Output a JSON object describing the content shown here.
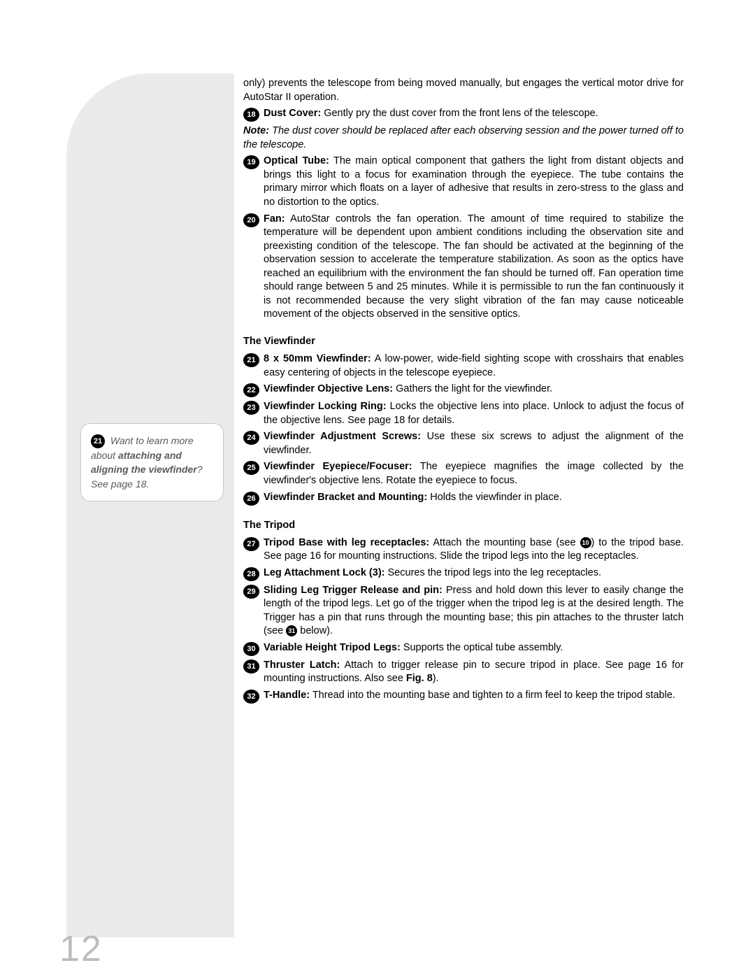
{
  "page_number": "12",
  "colors": {
    "sidebar_bg": "#ebebeb",
    "tip_border": "#c8c8c8",
    "tip_text": "#5a5a5a",
    "pagenum": "#bdbdbd",
    "circle": "#000000",
    "body_text": "#000000",
    "page_bg": "#ffffff"
  },
  "fonts": {
    "body_size_pt": 11,
    "pagenum_size_pt": 40
  },
  "tip": {
    "num": "21",
    "pre": "Want to learn more about ",
    "bold": "attaching and aligning the viewfinder",
    "post": "? See page 18."
  },
  "intro_para": "only) prevents the telescope from being moved manually, but engages the vertical motor drive for AutoStar II operation.",
  "items_top": [
    {
      "n": "18",
      "bold": "Dust Cover:",
      "txt": " Gently pry the dust cover from the front lens of the telescope."
    },
    {
      "n": "",
      "bold": "",
      "txt": ""
    }
  ],
  "dust_note_lead": "Note:",
  "dust_note": " The dust cover should be replaced after each observing session and the power turned off to the telescope.",
  "item19": {
    "n": "19",
    "bold": "Optical Tube:",
    "txt": " The main optical component that gathers the light from distant objects and brings this light to a focus for examination through the eyepiece. The tube contains the primary mirror which floats on a layer of adhesive that results in zero-stress to the glass and no distortion to the optics."
  },
  "item20": {
    "n": "20",
    "bold": "Fan:",
    "txt": " AutoStar controls the fan operation. The amount of time required to stabilize the temperature will be dependent upon ambient conditions including the observation site and preexisting condition of the telescope. The fan should be activated at the beginning of the observation session to accelerate the temperature stabilization. As soon as the optics have reached an equilibrium with the environment the fan should be turned off. Fan operation time should range between 5 and 25 minutes. While it is permissible to run the fan continuously it is not recommended because the very slight vibration of the fan may cause noticeable movement of the objects observed in the sensitive optics."
  },
  "sect_viewfinder": "The Viewfinder",
  "vf": [
    {
      "n": "21",
      "bold": "8 x 50mm Viewfinder:",
      "txt": " A low-power, wide-field sighting scope with crosshairs that enables easy centering of objects in the telescope eyepiece."
    },
    {
      "n": "22",
      "bold": "Viewfinder Objective Lens:",
      "txt": " Gathers the light for the viewfinder."
    },
    {
      "n": "23",
      "bold": "Viewfinder Locking Ring:",
      "txt": " Locks the objective lens into place. Unlock to adjust the focus of the objective lens. See page 18 for details."
    },
    {
      "n": "24",
      "bold": "Viewfinder Adjustment Screws:",
      "txt": " Use these six screws to adjust the alignment of the viewfinder."
    },
    {
      "n": "25",
      "bold": "Viewfinder Eyepiece/Focuser:",
      "txt": " The eyepiece magnifies the image collected by the viewfinder's objective lens. Rotate the eyepiece to focus."
    },
    {
      "n": "26",
      "bold": "Viewfinder Bracket and Mounting:",
      "txt": " Holds the viewfinder in place."
    }
  ],
  "sect_tripod": "The Tripod",
  "tp27": {
    "n": "27",
    "bold": "Tripod Base with leg receptacles:",
    "pre": " Attach the mounting base (see ",
    "ref": "10",
    "post": ") to the tripod base. See page 16 for mounting instructions. Slide the tripod legs into the leg receptacles."
  },
  "tp28": {
    "n": "28",
    "bold": "Leg Attachment Lock (3):",
    "txt": " Secures the tripod legs into the leg receptacles."
  },
  "tp29": {
    "n": "29",
    "bold": "Sliding Leg Trigger Release and pin:",
    "pre": " Press and hold down this lever to easily change the length of the tripod legs. Let go of the trigger when the tripod leg is at the desired length. The Trigger has a pin that runs through the mounting base; this pin attaches to the thruster latch (see ",
    "ref": "31",
    "post": " below)."
  },
  "tp30": {
    "n": "30",
    "bold": "Variable Height Tripod Legs:",
    "txt": " Supports the optical tube assembly."
  },
  "tp31": {
    "n": "31",
    "bold": "Thruster Latch:",
    "pre": " Attach to trigger release pin to secure tripod in place. See page 16 for mounting instructions. Also see ",
    "figbold": "Fig. 8",
    "post": ")."
  },
  "tp32": {
    "n": "32",
    "bold": "T-Handle:",
    "txt": " Thread into the mounting base and tighten to a firm feel to keep the tripod stable."
  }
}
